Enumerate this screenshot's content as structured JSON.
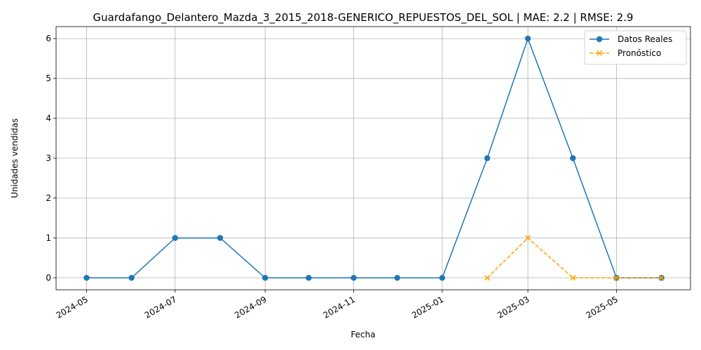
{
  "chart_data": {
    "type": "line",
    "title": "Guardafango_Delantero_Mazda_3_2015_2018-GENERICO_REPUESTOS_DEL_SOL | MAE: 2.2 | RMSE: 2.9",
    "xlabel": "Fecha",
    "ylabel": "Unidades vendidas",
    "grid": true,
    "legend_position": "top-right",
    "x_type": "date",
    "xlim": [
      "2024-04-10",
      "2025-06-21"
    ],
    "ylim": [
      -0.3,
      6.3
    ],
    "x_ticks": [
      "2024-05",
      "2024-07",
      "2024-09",
      "2024-11",
      "2025-01",
      "2025-03",
      "2025-05"
    ],
    "x_tick_dates": [
      "2024-05-01",
      "2024-07-01",
      "2024-09-01",
      "2024-11-01",
      "2025-01-01",
      "2025-03-01",
      "2025-05-01"
    ],
    "y_ticks": [
      0,
      1,
      2,
      3,
      4,
      5,
      6
    ],
    "series": [
      {
        "name": "Datos Reales",
        "color": "#1f77b4",
        "marker": "circle",
        "line_style": "solid",
        "x": [
          "2024-05-01",
          "2024-06-01",
          "2024-07-01",
          "2024-08-01",
          "2024-09-01",
          "2024-10-01",
          "2024-11-01",
          "2024-12-01",
          "2025-01-01",
          "2025-02-01",
          "2025-03-01",
          "2025-04-01",
          "2025-05-01",
          "2025-06-01"
        ],
        "values": [
          0,
          0,
          1,
          1,
          0,
          0,
          0,
          0,
          0,
          3,
          6,
          3,
          0,
          0
        ]
      },
      {
        "name": "Pronóstico",
        "color": "#ffa500",
        "marker": "x",
        "line_style": "dashed",
        "x": [
          "2025-02-01",
          "2025-03-01",
          "2025-04-01",
          "2025-05-01",
          "2025-06-01"
        ],
        "values": [
          0,
          1,
          0,
          0,
          0
        ]
      }
    ]
  }
}
